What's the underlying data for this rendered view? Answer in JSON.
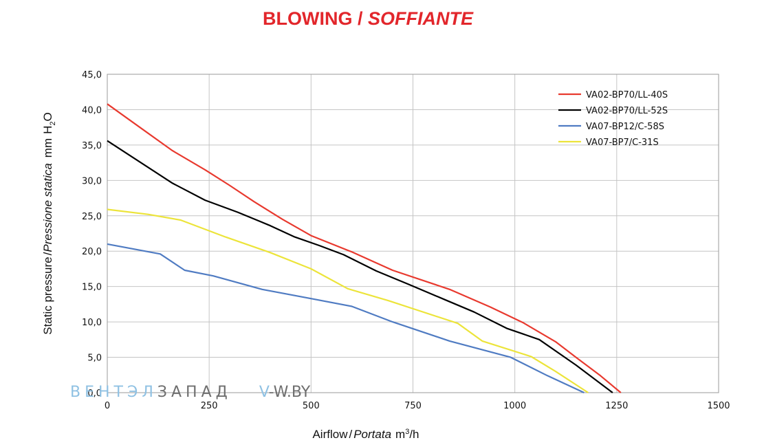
{
  "title": {
    "main": "BLOWING / ",
    "italic": "SOFFIANTE"
  },
  "watermark": {
    "part1": "ВЕНТЭЛ",
    "part2": "ЗАПАД",
    "part3": "V",
    "part4": "-W.BY"
  },
  "colors": {
    "title": "#e2262b",
    "wm_blue": "#8fc1e3",
    "wm_gray": "#8a8a8a"
  },
  "chart_data": {
    "type": "line",
    "xlabel": "Airflow / Portata m³/h",
    "ylabel": "Static pressure / Pressione statica mm H₂O",
    "xlim": [
      0,
      1500
    ],
    "ylim": [
      0,
      45
    ],
    "xticks": [
      "0",
      "250",
      "500",
      "750",
      "1000",
      "1250",
      "1500"
    ],
    "yticks": [
      "0,0",
      "5,0",
      "10,0",
      "15,0",
      "20,0",
      "25,0",
      "30,0",
      "35,0",
      "40,0",
      "45,0"
    ],
    "grid": true,
    "legend_position": "top-right",
    "series": [
      {
        "name": "VA02-BP70/LL-40S",
        "color": "#e8392e",
        "x": [
          0,
          80,
          160,
          240,
          300,
          360,
          430,
          500,
          600,
          700,
          840,
          940,
          1020,
          1100,
          1150,
          1210,
          1260
        ],
        "y": [
          40.8,
          37.5,
          34.2,
          31.5,
          29.3,
          27.0,
          24.5,
          22.2,
          19.9,
          17.3,
          14.6,
          12.1,
          9.9,
          7.2,
          5.0,
          2.4,
          0.0
        ]
      },
      {
        "name": "VA02-BP70/LL-52S",
        "color": "#000000",
        "x": [
          0,
          80,
          160,
          240,
          320,
          400,
          460,
          520,
          580,
          660,
          740,
          830,
          900,
          980,
          1060,
          1150,
          1240
        ],
        "y": [
          35.6,
          32.6,
          29.6,
          27.2,
          25.5,
          23.6,
          22.0,
          20.8,
          19.5,
          17.2,
          15.3,
          13.1,
          11.4,
          9.1,
          7.5,
          3.9,
          0.0
        ]
      },
      {
        "name": "VA07-BP12/C-58S",
        "color": "#4f7bc2",
        "x": [
          0,
          130,
          190,
          260,
          380,
          500,
          600,
          700,
          840,
          990,
          1080,
          1170
        ],
        "y": [
          21.0,
          19.6,
          17.3,
          16.5,
          14.6,
          13.3,
          12.2,
          10.0,
          7.3,
          5.0,
          2.4,
          0.0
        ]
      },
      {
        "name": "VA07-BP7/C-31S",
        "color": "#ece43a",
        "x": [
          0,
          100,
          180,
          290,
          400,
          500,
          590,
          690,
          860,
          920,
          1040,
          1100,
          1180
        ],
        "y": [
          25.9,
          25.2,
          24.4,
          22.0,
          19.8,
          17.5,
          14.7,
          13.0,
          9.8,
          7.3,
          5.1,
          3.0,
          0.0
        ]
      }
    ]
  }
}
